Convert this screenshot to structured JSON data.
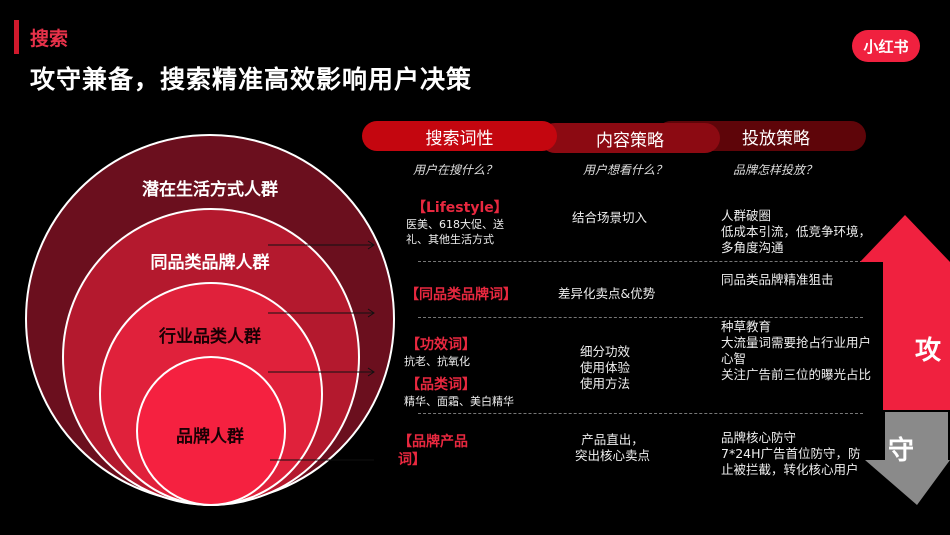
{
  "header": {
    "tag": "搜索",
    "title": "攻守兼备，搜索精准高效影响用户决策",
    "logo": "小红书"
  },
  "circles": [
    {
      "label": "潜在生活方式人群",
      "color": "#6b0f1e"
    },
    {
      "label": "同品类品牌人群",
      "color": "#b4192e"
    },
    {
      "label": "行业品类人群",
      "color": "#e0213b"
    },
    {
      "label": "品牌人群",
      "color": "#f52140"
    }
  ],
  "columns": [
    {
      "title": "搜索词性",
      "subtitle": "用户在搜什么？"
    },
    {
      "title": "内容策略",
      "subtitle": "用户想看什么？"
    },
    {
      "title": "投放策略",
      "subtitle": "品牌怎样投放？"
    }
  ],
  "rows": [
    {
      "keyword": "【Lifestyle】",
      "keyword_desc": "医美、618大促、送礼、其他生活方式",
      "content": "结合场景切入",
      "strategy": [
        "人群破圈",
        "低成本引流，低竞争环境，",
        "多角度沟通"
      ]
    },
    {
      "keyword": "【同品类品牌词】",
      "content": "差异化卖点&优势",
      "strategy": [
        "同品类品牌精准狙击"
      ]
    },
    {
      "keyword": "【功效词】",
      "keyword_desc": "抗老、抗氧化",
      "keyword2": "【品类词】",
      "keyword2_desc": "精华、面霜、美白精华",
      "content": [
        "细分功效",
        "使用体验",
        "使用方法"
      ],
      "strategy": [
        "种草教育",
        "大流量词需要抢占行业用户心智",
        "关注广告前三位的曝光占比"
      ]
    },
    {
      "keyword": "【品牌产品词】",
      "content": [
        "产品直出，",
        "突出核心卖点"
      ],
      "strategy": [
        "品牌核心防守",
        "7*24H广告首位防守，防止被拦截，转化核心用户"
      ]
    }
  ],
  "arrows": {
    "attack": {
      "label": "攻",
      "color": "#f0213f"
    },
    "defend": {
      "label": "守",
      "color": "#8a8a8a"
    }
  }
}
